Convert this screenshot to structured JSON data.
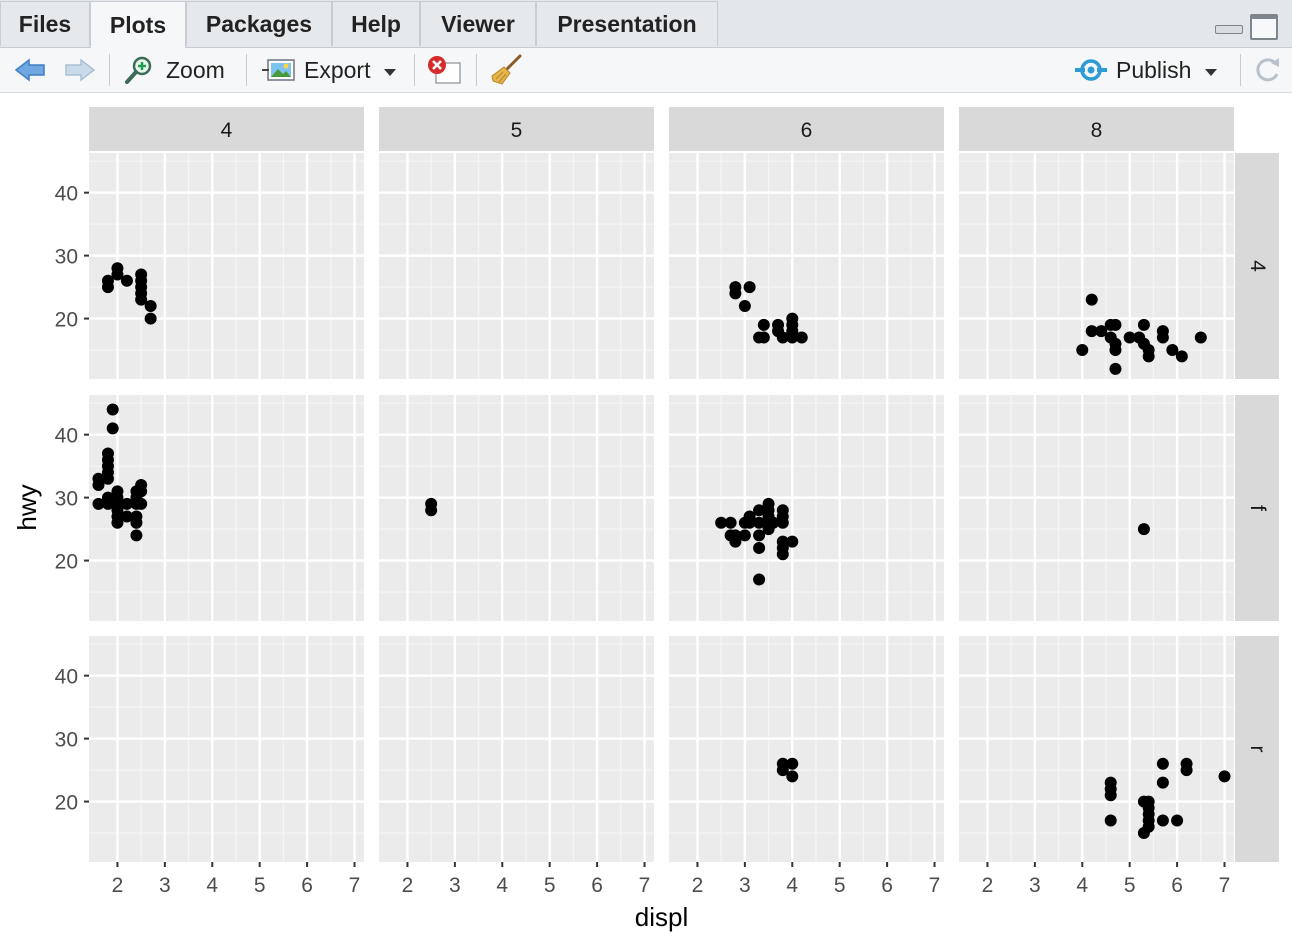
{
  "tabs": [
    {
      "label": "Files"
    },
    {
      "label": "Plots",
      "active": true
    },
    {
      "label": "Packages"
    },
    {
      "label": "Help"
    },
    {
      "label": "Viewer"
    },
    {
      "label": "Presentation"
    }
  ],
  "toolbar": {
    "zoom_label": "Zoom",
    "export_label": "Export",
    "publish_label": "Publish"
  },
  "icons": [
    "back-arrow-icon",
    "forward-arrow-icon",
    "zoom-icon",
    "export-image-icon",
    "remove-plot-icon",
    "broom-icon",
    "publish-icon",
    "refresh-icon"
  ],
  "colors": {
    "panel_bg": "#ebebeb",
    "strip_bg": "#d9d9d9",
    "point": "#000000",
    "accent": "#2e9ad6"
  },
  "chart_data": {
    "type": "scatter",
    "facet_type": "grid",
    "xlabel": "displ",
    "ylabel": "hwy",
    "col_strips": [
      "4",
      "5",
      "6",
      "8"
    ],
    "row_strips": [
      "4",
      "f",
      "r"
    ],
    "xlim": [
      1.4,
      7.2
    ],
    "ylim": [
      10.4,
      46.3
    ],
    "x_ticks": [
      2,
      3,
      4,
      5,
      6,
      7
    ],
    "x_tick_labels": [
      "2",
      "3",
      "4",
      "5",
      "6",
      "7"
    ],
    "y_ticks": [
      20,
      30,
      40
    ],
    "y_tick_labels": [
      "20",
      "30",
      "40"
    ],
    "grid": true,
    "panels": [
      {
        "row": "4",
        "col": "4",
        "points": [
          [
            1.8,
            26
          ],
          [
            1.8,
            25
          ],
          [
            2.0,
            28
          ],
          [
            2.0,
            27
          ],
          [
            2.2,
            26
          ],
          [
            2.5,
            27
          ],
          [
            2.5,
            26
          ],
          [
            2.5,
            25
          ],
          [
            2.5,
            24
          ],
          [
            2.5,
            23
          ],
          [
            2.7,
            22
          ],
          [
            2.7,
            20
          ]
        ]
      },
      {
        "row": "4",
        "col": "5",
        "points": []
      },
      {
        "row": "4",
        "col": "6",
        "points": [
          [
            2.8,
            25
          ],
          [
            2.8,
            24
          ],
          [
            3.1,
            25
          ],
          [
            3.0,
            22
          ],
          [
            3.3,
            17
          ],
          [
            3.4,
            17
          ],
          [
            3.4,
            19
          ],
          [
            3.7,
            19
          ],
          [
            3.7,
            18
          ],
          [
            3.8,
            17
          ],
          [
            4.0,
            20
          ],
          [
            4.0,
            19
          ],
          [
            4.0,
            18
          ],
          [
            4.0,
            17
          ],
          [
            4.2,
            17
          ]
        ]
      },
      {
        "row": "4",
        "col": "8",
        "points": [
          [
            4.2,
            23
          ],
          [
            4.0,
            15
          ],
          [
            4.2,
            18
          ],
          [
            4.4,
            18
          ],
          [
            4.6,
            19
          ],
          [
            4.7,
            19
          ],
          [
            4.6,
            17
          ],
          [
            4.7,
            16
          ],
          [
            4.7,
            15
          ],
          [
            4.7,
            12
          ],
          [
            5.0,
            17
          ],
          [
            5.2,
            17
          ],
          [
            5.3,
            19
          ],
          [
            5.3,
            16
          ],
          [
            5.4,
            15
          ],
          [
            5.4,
            14
          ],
          [
            5.7,
            18
          ],
          [
            5.7,
            17
          ],
          [
            5.9,
            15
          ],
          [
            6.1,
            14
          ],
          [
            6.5,
            17
          ]
        ]
      },
      {
        "row": "f",
        "col": "4",
        "points": [
          [
            1.6,
            33
          ],
          [
            1.6,
            32
          ],
          [
            1.6,
            29
          ],
          [
            1.8,
            37
          ],
          [
            1.8,
            36
          ],
          [
            1.8,
            35
          ],
          [
            1.8,
            34
          ],
          [
            1.8,
            33
          ],
          [
            1.8,
            30
          ],
          [
            1.8,
            29
          ],
          [
            1.9,
            44
          ],
          [
            1.9,
            41
          ],
          [
            2.0,
            31
          ],
          [
            2.0,
            30
          ],
          [
            2.0,
            29
          ],
          [
            2.0,
            28
          ],
          [
            2.0,
            27
          ],
          [
            2.0,
            26
          ],
          [
            2.2,
            29
          ],
          [
            2.2,
            27
          ],
          [
            2.4,
            31
          ],
          [
            2.4,
            30
          ],
          [
            2.4,
            29
          ],
          [
            2.4,
            27
          ],
          [
            2.4,
            26
          ],
          [
            2.4,
            24
          ],
          [
            2.5,
            32
          ],
          [
            2.5,
            31
          ],
          [
            2.5,
            29
          ]
        ]
      },
      {
        "row": "f",
        "col": "5",
        "points": [
          [
            2.5,
            29
          ],
          [
            2.5,
            28
          ]
        ]
      },
      {
        "row": "f",
        "col": "6",
        "points": [
          [
            2.5,
            26
          ],
          [
            2.7,
            26
          ],
          [
            2.7,
            24
          ],
          [
            2.8,
            24
          ],
          [
            2.8,
            23
          ],
          [
            3.0,
            26
          ],
          [
            3.0,
            24
          ],
          [
            3.1,
            27
          ],
          [
            3.1,
            26
          ],
          [
            3.3,
            28
          ],
          [
            3.3,
            26
          ],
          [
            3.3,
            24
          ],
          [
            3.3,
            22
          ],
          [
            3.3,
            17
          ],
          [
            3.5,
            29
          ],
          [
            3.5,
            28
          ],
          [
            3.5,
            27
          ],
          [
            3.5,
            26
          ],
          [
            3.5,
            25
          ],
          [
            3.6,
            26
          ],
          [
            3.8,
            28
          ],
          [
            3.8,
            27
          ],
          [
            3.8,
            26
          ],
          [
            3.8,
            23
          ],
          [
            3.8,
            22
          ],
          [
            3.8,
            21
          ],
          [
            4.0,
            23
          ]
        ]
      },
      {
        "row": "f",
        "col": "8",
        "points": [
          [
            5.3,
            25
          ]
        ]
      },
      {
        "row": "r",
        "col": "4",
        "points": []
      },
      {
        "row": "r",
        "col": "5",
        "points": []
      },
      {
        "row": "r",
        "col": "6",
        "points": [
          [
            3.8,
            26
          ],
          [
            3.8,
            25
          ],
          [
            4.0,
            26
          ],
          [
            4.0,
            24
          ]
        ]
      },
      {
        "row": "r",
        "col": "8",
        "points": [
          [
            4.6,
            23
          ],
          [
            4.6,
            22
          ],
          [
            4.6,
            21
          ],
          [
            4.6,
            17
          ],
          [
            5.3,
            20
          ],
          [
            5.4,
            20
          ],
          [
            5.4,
            19
          ],
          [
            5.4,
            18
          ],
          [
            5.4,
            17
          ],
          [
            5.4,
            16
          ],
          [
            5.3,
            15
          ],
          [
            5.7,
            26
          ],
          [
            5.7,
            23
          ],
          [
            5.7,
            17
          ],
          [
            6.0,
            17
          ],
          [
            6.2,
            26
          ],
          [
            6.2,
            25
          ],
          [
            7.0,
            24
          ]
        ]
      }
    ]
  }
}
